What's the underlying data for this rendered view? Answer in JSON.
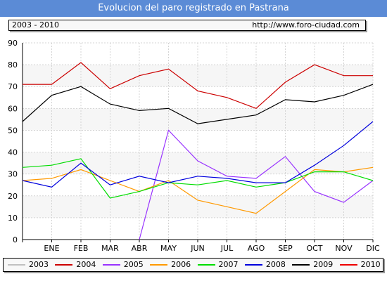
{
  "header": {
    "title": "Evolucion del paro registrado en Pastrana",
    "period": "2003 - 2010",
    "source": "http://www.foro-ciudad.com"
  },
  "chart_data": {
    "type": "line",
    "categories": [
      "",
      "ENE",
      "FEB",
      "MAR",
      "ABR",
      "MAY",
      "JUN",
      "JUL",
      "AGO",
      "SEP",
      "OCT",
      "NOV",
      "DIC"
    ],
    "yticks": [
      0,
      10,
      20,
      30,
      40,
      50,
      60,
      70,
      80,
      90
    ],
    "ylim": [
      0,
      90
    ],
    "grid": true,
    "legend_position": "bottom",
    "series": [
      {
        "name": "2003",
        "color": "#c0c0c0",
        "values": [
          null,
          null,
          null,
          null,
          null,
          null,
          null,
          null,
          null,
          null,
          null,
          null,
          null
        ]
      },
      {
        "name": "2004",
        "color": "#cc0000",
        "values": [
          71,
          71,
          81,
          69,
          75,
          78,
          68,
          65,
          60,
          72,
          80,
          75,
          75
        ]
      },
      {
        "name": "2005",
        "color": "#9933ff",
        "values": [
          null,
          null,
          null,
          null,
          0,
          50,
          36,
          29,
          28,
          38,
          22,
          17,
          27
        ]
      },
      {
        "name": "2006",
        "color": "#ff9900",
        "values": [
          27,
          28,
          32,
          27,
          22,
          27,
          18,
          15,
          12,
          22,
          32,
          31,
          33
        ]
      },
      {
        "name": "2007",
        "color": "#00dd00",
        "values": [
          33,
          34,
          37,
          19,
          22,
          26,
          25,
          27,
          24,
          26,
          31,
          31,
          27
        ]
      },
      {
        "name": "2008",
        "color": "#0000dd",
        "values": [
          27,
          24,
          35,
          25,
          29,
          26,
          29,
          28,
          26,
          26,
          34,
          43,
          54
        ]
      },
      {
        "name": "2009",
        "color": "#000000",
        "values": [
          54,
          66,
          70,
          62,
          59,
          60,
          53,
          55,
          57,
          64,
          63,
          66,
          71
        ]
      },
      {
        "name": "2010",
        "color": "#ee0000",
        "values": [
          null,
          null,
          null,
          null,
          null,
          null,
          null,
          null,
          null,
          null,
          null,
          null,
          null
        ]
      }
    ]
  }
}
